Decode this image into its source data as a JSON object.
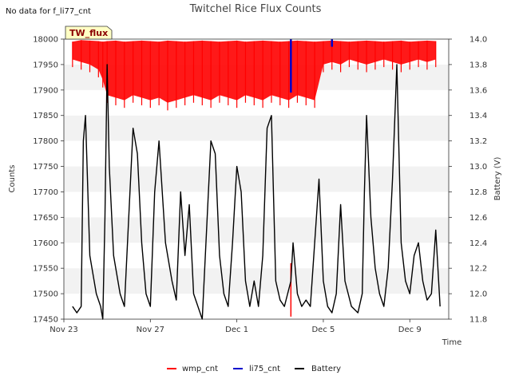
{
  "chart_data": {
    "type": "line",
    "title": "Twitchel Rice Flux Counts",
    "no_data_note": "No data for f_li77_cnt",
    "badge": "TW_flux",
    "xlabel": "Time",
    "ylabel_left": "Counts",
    "ylabel_right": "Battery (V)",
    "x_range_days": [
      0,
      17.8
    ],
    "x_ticks": [
      {
        "label": "Nov 23",
        "day": 0
      },
      {
        "label": "Nov 27",
        "day": 4
      },
      {
        "label": "Dec 1",
        "day": 8
      },
      {
        "label": "Dec 5",
        "day": 12
      },
      {
        "label": "Dec 9",
        "day": 16
      }
    ],
    "ylim_left": [
      17450,
      18000
    ],
    "ylim_right": [
      11.8,
      14.0
    ],
    "y_ticks_left": [
      17450,
      17500,
      17550,
      17600,
      17650,
      17700,
      17750,
      17800,
      17850,
      17900,
      17950,
      18000
    ],
    "y_ticks_right": [
      11.8,
      12.0,
      12.2,
      12.4,
      12.6,
      12.8,
      13.0,
      13.2,
      13.4,
      13.6,
      13.8,
      14.0
    ],
    "grid": "horizontal bands",
    "legend_position": "bottom-center",
    "series": [
      {
        "name": "wmp_cnt",
        "color": "#ff0000",
        "axis": "left",
        "x": [
          0.4,
          0.8,
          1.2,
          1.6,
          1.8,
          2.0,
          2.4,
          2.8,
          3.2,
          3.6,
          4.0,
          4.4,
          4.8,
          5.2,
          5.6,
          6.0,
          6.4,
          6.8,
          7.2,
          7.6,
          8.0,
          8.4,
          8.8,
          9.2,
          9.6,
          10.0,
          10.4,
          10.8,
          11.2,
          11.6,
          12.0,
          12.4,
          12.8,
          13.2,
          13.6,
          14.0,
          14.4,
          14.8,
          15.2,
          15.6,
          16.0,
          16.4,
          16.8,
          17.2
        ],
        "upper": [
          17995,
          17998,
          17997,
          17996,
          17995,
          17996,
          17997,
          17995,
          17996,
          17997,
          17996,
          17995,
          17997,
          17996,
          17995,
          17996,
          17997,
          17996,
          17995,
          17996,
          17997,
          17995,
          17996,
          17997,
          17996,
          17995,
          17996,
          17997,
          17996,
          17995,
          17996,
          17997,
          17996,
          17995,
          17996,
          17997,
          17996,
          17995,
          17996,
          17997,
          17995,
          17996,
          17997,
          17996
        ],
        "lower": [
          17960,
          17955,
          17950,
          17940,
          17920,
          17890,
          17885,
          17880,
          17890,
          17885,
          17880,
          17885,
          17875,
          17880,
          17885,
          17890,
          17885,
          17880,
          17890,
          17885,
          17880,
          17890,
          17885,
          17880,
          17890,
          17885,
          17880,
          17890,
          17885,
          17880,
          17950,
          17955,
          17950,
          17960,
          17955,
          17950,
          17955,
          17960,
          17955,
          17950,
          17955,
          17960,
          17955,
          17960
        ],
        "spike": {
          "day": 10.5,
          "value": 17455
        }
      },
      {
        "name": "li75_cnt",
        "color": "#0000cc",
        "axis": "left",
        "segments": [
          {
            "day": 10.5,
            "from": 17895,
            "to": 18000
          },
          {
            "day": 12.4,
            "from": 17985,
            "to": 18000
          }
        ]
      },
      {
        "name": "Battery",
        "color": "#000000",
        "axis": "right",
        "x": [
          0.4,
          0.6,
          0.8,
          0.9,
          1.0,
          1.2,
          1.5,
          1.7,
          1.8,
          1.9,
          2.0,
          2.1,
          2.3,
          2.6,
          2.8,
          3.0,
          3.2,
          3.4,
          3.6,
          3.8,
          4.0,
          4.2,
          4.4,
          4.7,
          5.0,
          5.2,
          5.4,
          5.6,
          5.8,
          6.0,
          6.2,
          6.4,
          6.6,
          6.8,
          7.0,
          7.2,
          7.4,
          7.6,
          7.8,
          8.0,
          8.2,
          8.4,
          8.6,
          8.8,
          9.0,
          9.2,
          9.4,
          9.6,
          9.8,
          10.0,
          10.2,
          10.5,
          10.6,
          10.8,
          11.0,
          11.2,
          11.4,
          11.6,
          11.8,
          12.0,
          12.2,
          12.4,
          12.6,
          12.8,
          13.0,
          13.3,
          13.6,
          13.8,
          13.9,
          14.0,
          14.2,
          14.4,
          14.6,
          14.8,
          15.0,
          15.2,
          15.4,
          15.6,
          15.8,
          16.0,
          16.2,
          16.4,
          16.6,
          16.8,
          17.0,
          17.2,
          17.4
        ],
        "values": [
          11.9,
          11.85,
          11.9,
          13.2,
          13.4,
          12.3,
          12.0,
          11.9,
          11.8,
          12.6,
          13.8,
          13.0,
          12.3,
          12.0,
          11.9,
          12.6,
          13.3,
          13.1,
          12.4,
          12.0,
          11.9,
          12.8,
          13.2,
          12.4,
          12.1,
          11.95,
          12.8,
          12.3,
          12.7,
          12.0,
          11.9,
          11.8,
          12.5,
          13.2,
          13.1,
          12.3,
          12.0,
          11.9,
          12.4,
          13.0,
          12.8,
          12.1,
          11.9,
          12.1,
          11.9,
          12.3,
          13.3,
          13.4,
          12.1,
          11.95,
          11.9,
          12.1,
          12.4,
          12.0,
          11.9,
          11.95,
          11.9,
          12.4,
          12.9,
          12.1,
          11.9,
          11.85,
          12.0,
          12.7,
          12.1,
          11.9,
          11.85,
          12.0,
          12.8,
          13.4,
          12.6,
          12.2,
          12.0,
          11.9,
          12.2,
          12.9,
          13.8,
          12.4,
          12.1,
          12.0,
          12.3,
          12.4,
          12.1,
          11.95,
          12.0,
          12.5,
          11.9
        ]
      }
    ]
  }
}
